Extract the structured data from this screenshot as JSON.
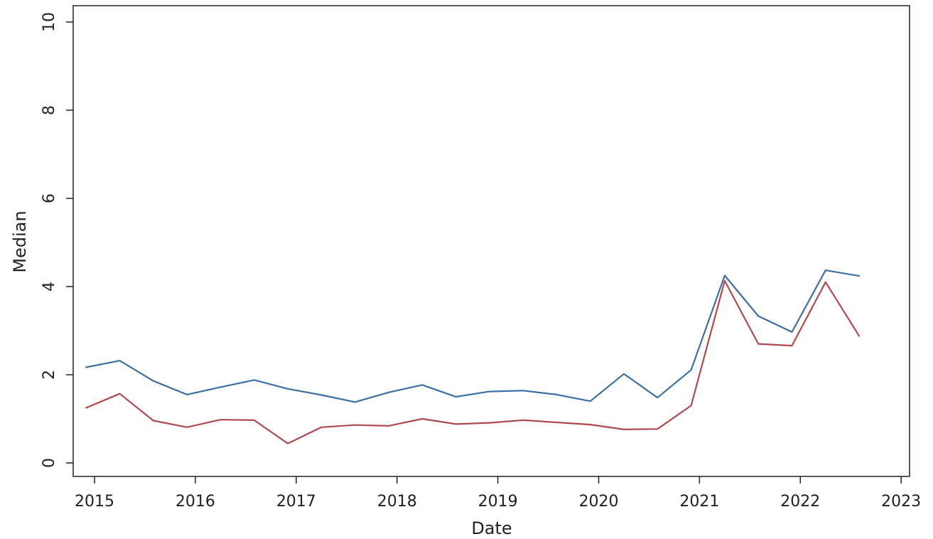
{
  "chart_data": {
    "type": "line",
    "title": "",
    "xlabel": "Date",
    "ylabel": "Median",
    "x_axis_type": "date",
    "xlim": [
      "2014-10-15",
      "2023-02-01"
    ],
    "ylim": [
      0,
      10
    ],
    "xticks": [
      2015,
      2016,
      2017,
      2018,
      2019,
      2020,
      2021,
      2022,
      2023
    ],
    "yticks": [
      0,
      2,
      4,
      6,
      8,
      10
    ],
    "grid": false,
    "legend": "none",
    "x": [
      "2014-12-01",
      "2015-04-01",
      "2015-08-01",
      "2015-12-01",
      "2016-04-01",
      "2016-08-01",
      "2016-12-01",
      "2017-04-01",
      "2017-08-01",
      "2017-12-01",
      "2018-04-01",
      "2018-08-01",
      "2018-12-01",
      "2019-04-01",
      "2019-08-01",
      "2019-12-01",
      "2020-04-01",
      "2020-08-01",
      "2020-12-01",
      "2021-04-01",
      "2021-08-01",
      "2021-12-01",
      "2022-04-01",
      "2022-08-01"
    ],
    "series": [
      {
        "color": "#3d6fa3",
        "values": [
          2.17,
          2.32,
          1.86,
          1.55,
          1.72,
          1.88,
          1.68,
          1.54,
          1.38,
          1.6,
          1.77,
          1.5,
          1.62,
          1.64,
          1.55,
          1.4,
          2.02,
          1.48,
          2.11,
          4.25,
          3.33,
          2.97,
          4.37,
          4.24
        ]
      },
      {
        "color": "#b04a4e",
        "values": [
          1.25,
          1.57,
          0.96,
          0.81,
          0.98,
          0.97,
          0.44,
          0.81,
          0.86,
          0.84,
          1.0,
          0.88,
          0.91,
          0.97,
          0.92,
          0.87,
          0.76,
          0.77,
          1.3,
          4.13,
          2.7,
          2.66,
          4.1,
          2.88
        ]
      }
    ]
  }
}
